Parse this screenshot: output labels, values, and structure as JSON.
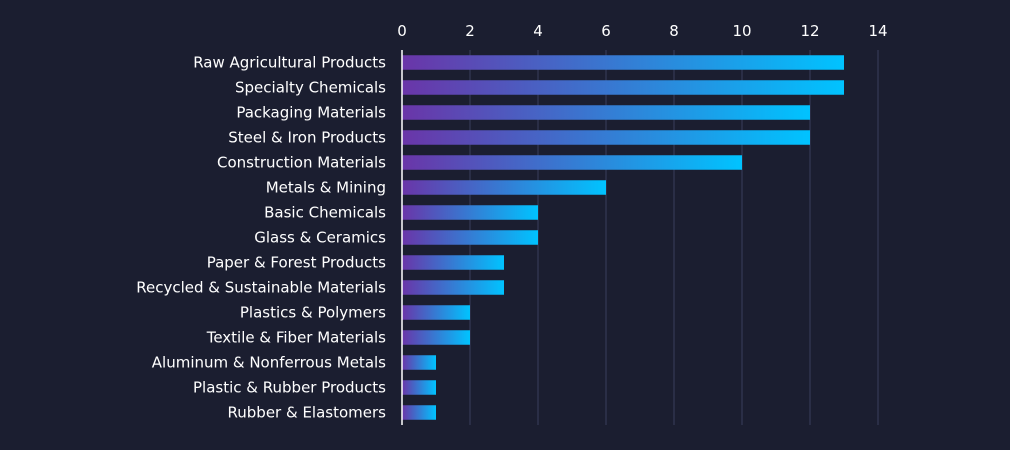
{
  "chart_data": {
    "type": "bar",
    "orientation": "horizontal",
    "title": "",
    "xlabel": "",
    "ylabel": "",
    "categories": [
      "Raw Agricultural Products",
      "Specialty Chemicals",
      "Packaging Materials",
      "Steel & Iron Products",
      "Construction Materials",
      "Metals & Mining",
      "Basic Chemicals",
      "Glass & Ceramics",
      "Paper & Forest Products",
      "Recycled & Sustainable Materials",
      "Plastics & Polymers",
      "Textile & Fiber Materials",
      "Aluminum & Nonferrous Metals",
      "Plastic & Rubber Products",
      "Rubber & Elastomers"
    ],
    "values": [
      13,
      13,
      12,
      12,
      10,
      6,
      4,
      4,
      3,
      3,
      2,
      2,
      1,
      1,
      1
    ],
    "xlim": [
      0,
      14
    ],
    "xticks": [
      "0",
      "2",
      "4",
      "6",
      "8",
      "10",
      "12",
      "14"
    ],
    "x_axis_position": "top",
    "grid": true,
    "legend": "none",
    "colors": {
      "background": "#1b1e30",
      "bar_gradient_start": "#6a35a8",
      "bar_gradient_end": "#00c3ff",
      "grid": "#3a3f5c",
      "text": "#ffffff",
      "axis": "#ffffff"
    }
  }
}
